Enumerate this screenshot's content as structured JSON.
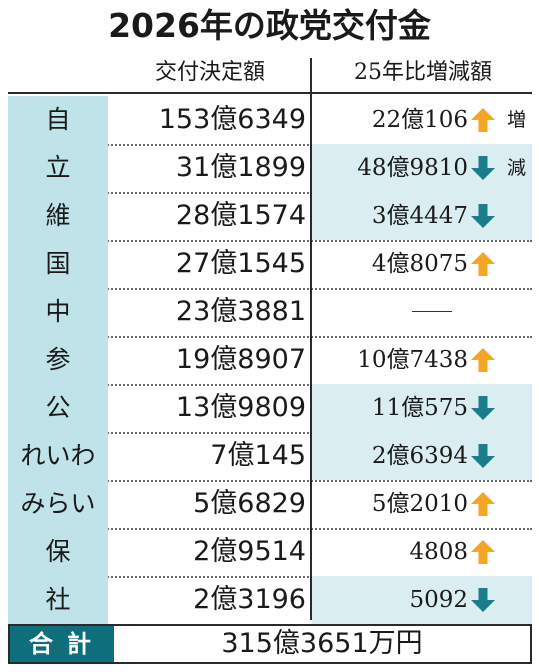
{
  "title": "2026年の政党交付金",
  "headers": {
    "amount": "交付決定額",
    "change": "25年比増減額"
  },
  "colors": {
    "label_bg": "#bfe3e8",
    "shade_bg": "#daeef1",
    "up_arrow": "#f3a623",
    "down_arrow": "#1a7d8c",
    "total_bg": "#0e6e7c"
  },
  "rows": [
    {
      "party": "自民",
      "amount": "153億6349",
      "change": "22億106",
      "direction": "up",
      "tag": "増"
    },
    {
      "party": "立民",
      "amount": "31億1899",
      "change": "48億9810",
      "direction": "down",
      "tag": "減"
    },
    {
      "party": "維新",
      "amount": "28億1574",
      "change": "3億4447",
      "direction": "down",
      "tag": ""
    },
    {
      "party": "国民",
      "amount": "27億1545",
      "change": "4億8075",
      "direction": "up",
      "tag": ""
    },
    {
      "party": "中道",
      "amount": "23億3881",
      "change": "",
      "direction": "none",
      "tag": ""
    },
    {
      "party": "参政",
      "amount": "19億8907",
      "change": "10億7438",
      "direction": "up",
      "tag": ""
    },
    {
      "party": "公明",
      "amount": "13億9809",
      "change": "11億575",
      "direction": "down",
      "tag": ""
    },
    {
      "party": "れいわ",
      "amount": "7億145",
      "change": "2億6394",
      "direction": "down",
      "tag": ""
    },
    {
      "party": "みらい",
      "amount": "5億6829",
      "change": "5億2010",
      "direction": "up",
      "tag": ""
    },
    {
      "party": "保守",
      "amount": "2億9514",
      "change": "4808",
      "direction": "up",
      "tag": ""
    },
    {
      "party": "社民",
      "amount": "2億3196",
      "change": "5092",
      "direction": "down",
      "tag": ""
    }
  ],
  "total": {
    "label": "合計",
    "value": "315億3651万円"
  }
}
